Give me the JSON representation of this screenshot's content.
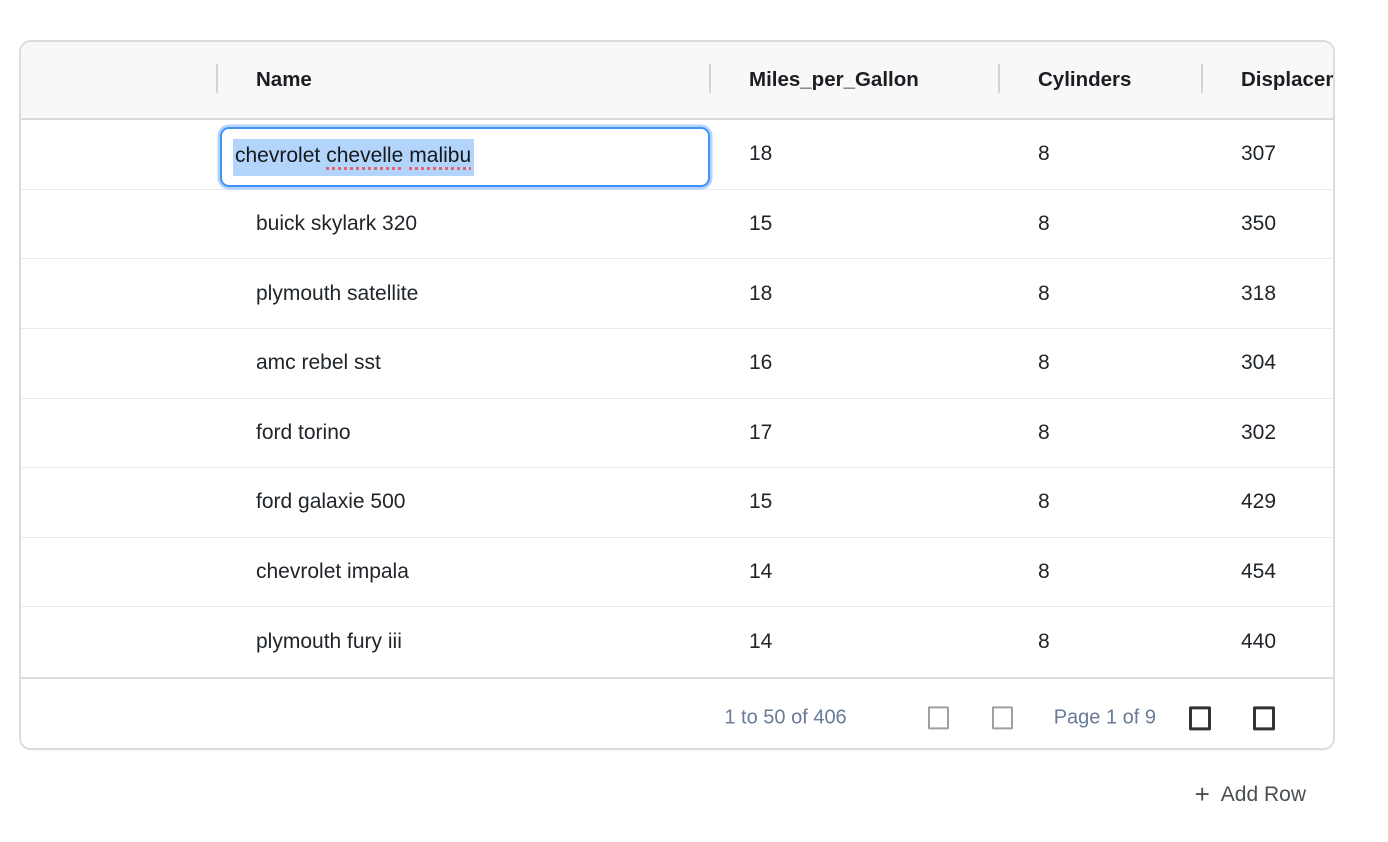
{
  "table": {
    "columns": [
      {
        "key": "spacer",
        "label": ""
      },
      {
        "key": "name",
        "label": "Name"
      },
      {
        "key": "mpg",
        "label": "Miles_per_Gallon"
      },
      {
        "key": "cyl",
        "label": "Cylinders"
      },
      {
        "key": "disp",
        "label": "Displacement"
      }
    ],
    "rows": [
      {
        "name": "chevrolet chevelle malibu",
        "mpg": "18",
        "cyl": "8",
        "disp": "307"
      },
      {
        "name": "buick skylark 320",
        "mpg": "15",
        "cyl": "8",
        "disp": "350"
      },
      {
        "name": "plymouth satellite",
        "mpg": "18",
        "cyl": "8",
        "disp": "318"
      },
      {
        "name": "amc rebel sst",
        "mpg": "16",
        "cyl": "8",
        "disp": "304"
      },
      {
        "name": "ford torino",
        "mpg": "17",
        "cyl": "8",
        "disp": "302"
      },
      {
        "name": "ford galaxie 500",
        "mpg": "15",
        "cyl": "8",
        "disp": "429"
      },
      {
        "name": "chevrolet impala",
        "mpg": "14",
        "cyl": "8",
        "disp": "454"
      },
      {
        "name": "plymouth fury iii",
        "mpg": "14",
        "cyl": "8",
        "disp": "440"
      }
    ]
  },
  "editor": {
    "value": "chevrolet chevelle malibu",
    "segments": [
      {
        "text": "chevrolet",
        "spellcheck": "ok"
      },
      {
        "text": "chevelle",
        "spellcheck": "misspelled"
      },
      {
        "text": "malibu",
        "spellcheck": "misspelled"
      }
    ],
    "state": "text-selected"
  },
  "pagination": {
    "range_summary": "1 to 50 of 406",
    "page_summary": "Page 1 of 9",
    "buttons": [
      {
        "icon": "first-page-icon",
        "state": "disabled"
      },
      {
        "icon": "previous-page-icon",
        "state": "disabled"
      },
      {
        "icon": "next-page-icon",
        "state": "enabled"
      },
      {
        "icon": "last-page-icon",
        "state": "enabled"
      }
    ]
  },
  "actions": {
    "add_row_icon": "+",
    "add_row_label": "Add Row"
  },
  "colors": {
    "editor_focus_blue": "#3f94f6",
    "text_selection_blue": "#b3d5fc",
    "spellcheck_red": "#e7636a",
    "header_background": "#f8f8f8",
    "pagination_text": "#6a7a97",
    "cell_text": "#20252a",
    "border_gray": "#dadcde"
  }
}
